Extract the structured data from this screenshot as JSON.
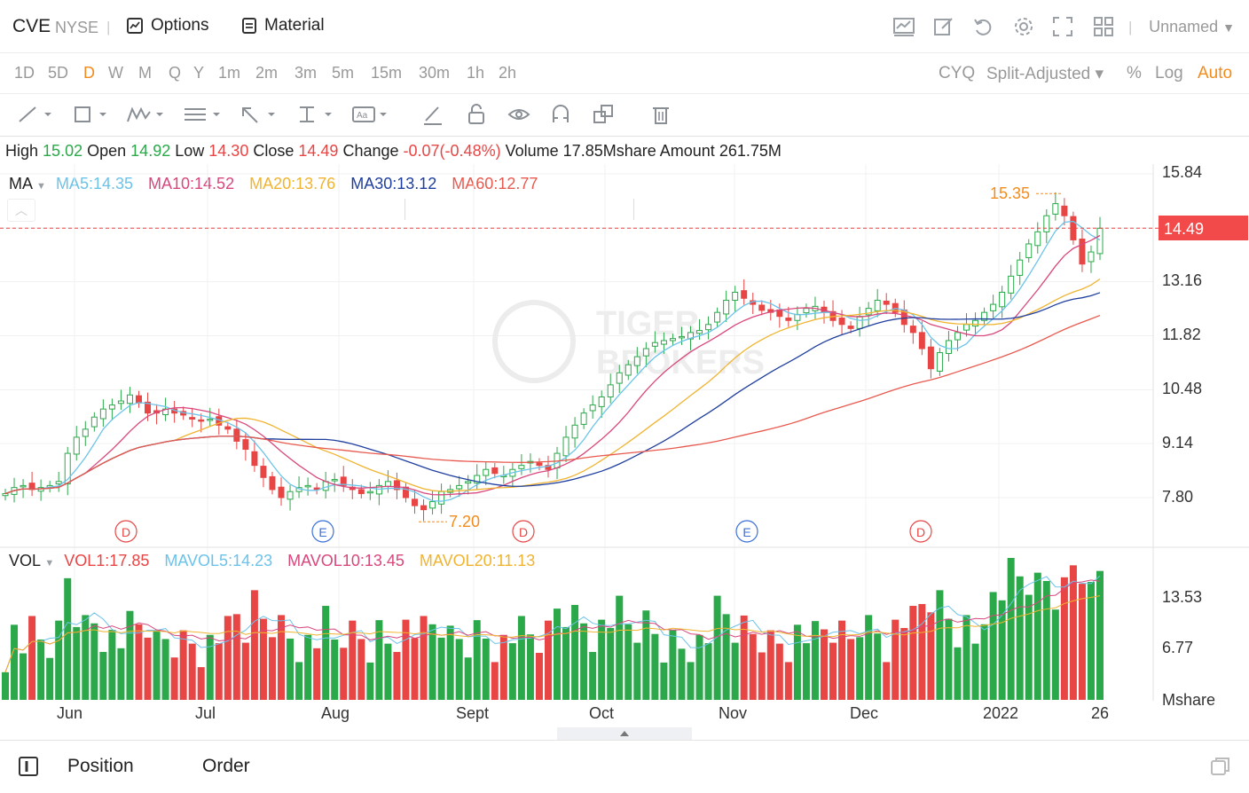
{
  "header": {
    "symbol": "CVE",
    "exchange": "NYSE",
    "separator": "|",
    "options_label": "Options",
    "material_label": "Material",
    "layout_name": "Unnamed"
  },
  "periods": [
    "1D",
    "5D",
    "D",
    "W",
    "M",
    "Q",
    "Y",
    "1m",
    "2m",
    "3m",
    "5m",
    "15m",
    "30m",
    "1h",
    "2h"
  ],
  "active_period": "D",
  "chart_options": {
    "cyq": "CYQ",
    "adjust": "Split-Adjusted",
    "percent": "%",
    "log": "Log",
    "auto": "Auto"
  },
  "quote": {
    "high_label": "High",
    "high": "15.02",
    "open_label": "Open",
    "open": "14.92",
    "low_label": "Low",
    "low": "14.30",
    "close_label": "Close",
    "close": "14.49",
    "change_label": "Change",
    "change": "-0.07(-0.48%)",
    "volume_label": "Volume",
    "volume": "17.85Mshare",
    "amount_label": "Amount",
    "amount": "261.75M"
  },
  "ma_legend": {
    "label": "MA",
    "ma5": "MA5:14.35",
    "ma10": "MA10:14.52",
    "ma20": "MA20:13.76",
    "ma30": "MA30:13.12",
    "ma60": "MA60:12.77"
  },
  "vol_legend": {
    "label": "VOL",
    "vol1": "VOL1:17.85",
    "mavol5": "MAVOL5:14.23",
    "mavol10": "MAVOL10:13.45",
    "mavol20": "MAVOL20:11.13"
  },
  "price_axis": [
    "15.84",
    "13.16",
    "11.82",
    "10.48",
    "9.14",
    "7.80"
  ],
  "last_price": "14.49",
  "high_marker": "15.35",
  "low_marker": "7.20",
  "volume_axis": [
    "13.53",
    "6.77"
  ],
  "volume_unit": "Mshare",
  "months": [
    "Jun",
    "Jul",
    "Aug",
    "Sept",
    "Oct",
    "Nov",
    "Dec",
    "2022",
    "26"
  ],
  "events": [
    "D",
    "E",
    "D",
    "E",
    "D"
  ],
  "watermark": "TIGER BROKERS",
  "bottom_tabs": {
    "position": "Position",
    "order": "Order"
  },
  "colors": {
    "up": "#e84545",
    "down": "#2ba84a",
    "accent": "#f28c1c",
    "ma5": "#6cc3ea",
    "ma10": "#d9477d",
    "ma20": "#f0b431",
    "ma30": "#1f3f9e",
    "ma60": "#e85a4f"
  },
  "icons": [
    "chart-icon",
    "edit-icon",
    "undo-icon",
    "gear-icon",
    "fullscreen-icon",
    "grid-icon"
  ],
  "chart_data": {
    "type": "candlestick",
    "ylim": [
      7.2,
      15.84
    ],
    "price_series": [
      7.9,
      8.05,
      8.1,
      8.0,
      8.05,
      8.1,
      8.2,
      8.9,
      9.3,
      9.5,
      9.8,
      10.0,
      10.1,
      10.2,
      10.35,
      10.15,
      9.9,
      9.9,
      10.0,
      9.9,
      9.85,
      9.75,
      9.7,
      9.75,
      9.6,
      9.5,
      9.2,
      9.0,
      8.6,
      8.3,
      8.0,
      7.8,
      7.95,
      8.05,
      8.1,
      8.0,
      8.2,
      8.25,
      8.1,
      8.0,
      7.9,
      7.95,
      8.1,
      8.2,
      8.0,
      7.8,
      7.6,
      7.5,
      7.7,
      7.95,
      8.0,
      8.1,
      8.2,
      8.35,
      8.5,
      8.4,
      8.35,
      8.5,
      8.6,
      8.7,
      8.6,
      8.5,
      8.9,
      9.3,
      9.6,
      9.9,
      10.1,
      10.3,
      10.6,
      10.9,
      11.1,
      11.3,
      11.5,
      11.65,
      11.7,
      11.75,
      11.8,
      11.9,
      11.95,
      12.1,
      12.4,
      12.7,
      12.9,
      12.75,
      12.6,
      12.45,
      12.4,
      12.3,
      12.2,
      12.35,
      12.5,
      12.55,
      12.4,
      12.2,
      12.1,
      12.0,
      12.3,
      12.5,
      12.7,
      12.6,
      12.4,
      12.1,
      11.9,
      11.5,
      11.0,
      11.4,
      11.7,
      11.9,
      12.1,
      12.2,
      12.4,
      12.6,
      12.9,
      13.3,
      13.7,
      14.1,
      14.4,
      14.8,
      15.1,
      14.8,
      14.2,
      13.6,
      13.9,
      14.49
    ],
    "volume_axis_labels": [
      "13.53",
      "6.77"
    ]
  }
}
